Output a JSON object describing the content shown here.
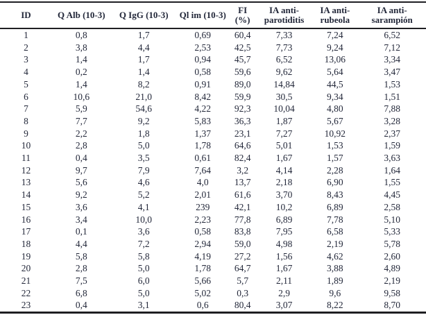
{
  "table": {
    "columns": [
      "ID",
      "Q Alb (10-3)",
      "Q IgG (10-3)",
      "Ql im (10-3)",
      "FI\n(%)",
      "IA anti-\nparotiditis",
      "IA anti-\nrubeola",
      "IA anti-\nsarampión"
    ],
    "rows": [
      [
        "1",
        "0,8",
        "1,7",
        "0,69",
        "60,4",
        "7,33",
        "7,24",
        "6,52"
      ],
      [
        "2",
        "3,8",
        "4,4",
        "2,53",
        "42,5",
        "7,73",
        "9,24",
        "7,12"
      ],
      [
        "3",
        "1,4",
        "1,7",
        "0,94",
        "45,7",
        "6,52",
        "13,06",
        "3,34"
      ],
      [
        "4",
        "0,2",
        "1,4",
        "0,58",
        "59,6",
        "9,62",
        "5,64",
        "3,47"
      ],
      [
        "5",
        "1,4",
        "8,2",
        "0,91",
        "89,0",
        "14,84",
        "44,5",
        "1,53"
      ],
      [
        "6",
        "10,6",
        "21,0",
        "8,42",
        "59,9",
        "30,5",
        "9,34",
        "1,51"
      ],
      [
        "7",
        "5,9",
        "54,6",
        "4,22",
        "92,3",
        "10,04",
        "4,80",
        "7,88"
      ],
      [
        "8",
        "7,7",
        "9,2",
        "5,83",
        "36,3",
        "1,87",
        "5,67",
        "3,28"
      ],
      [
        "9",
        "2,2",
        "1,8",
        "1,37",
        "23,1",
        "7,27",
        "10,92",
        "2,37"
      ],
      [
        "10",
        "2,8",
        "5,0",
        "1,78",
        "64,6",
        "5,01",
        "1,53",
        "1,59"
      ],
      [
        "11",
        "0,4",
        "3,5",
        "0,61",
        "82,4",
        "1,67",
        "1,57",
        "3,63"
      ],
      [
        "12",
        "9,7",
        "7,9",
        "7,64",
        "3,2",
        "4,14",
        "2,28",
        "1,64"
      ],
      [
        "13",
        "5,6",
        "4,6",
        "4,0",
        "13,7",
        "2,18",
        "6,90",
        "1,55"
      ],
      [
        "14",
        "9,2",
        "5,2",
        "2,01",
        "61,6",
        "3,70",
        "8,43",
        "4,45"
      ],
      [
        "15",
        "3,6",
        "4,1",
        "239",
        "42,1",
        "10,2",
        "6,89",
        "2,58"
      ],
      [
        "16",
        "3,4",
        "10,0",
        "2,23",
        "77,8",
        "6,89",
        "7,78",
        "5,10"
      ],
      [
        "17",
        "0,1",
        "3,6",
        "0,58",
        "83,8",
        "7,95",
        "6,58",
        "5,33"
      ],
      [
        "18",
        "4,4",
        "7,2",
        "2,94",
        "59,0",
        "4,98",
        "2,19",
        "5,78"
      ],
      [
        "19",
        "5,8",
        "5,8",
        "4,19",
        "27,2",
        "1,56",
        "4,62",
        "2,60"
      ],
      [
        "20",
        "2,8",
        "5,0",
        "1,78",
        "64,7",
        "1,67",
        "3,88",
        "4,89"
      ],
      [
        "21",
        "7,5",
        "6,0",
        "5,66",
        "5,7",
        "2,11",
        "1,89",
        "2,19"
      ],
      [
        "22",
        "6,8",
        "5,0",
        "5,02",
        "0,3",
        "2,9",
        "9,6",
        "9,58"
      ],
      [
        "23",
        "0,4",
        "3,1",
        "0,6",
        "80,4",
        "3,07",
        "8,22",
        "8,70"
      ]
    ],
    "column_widths_pct": [
      12.2,
      13.8,
      15.5,
      12.2,
      6.5,
      13.0,
      10.9,
      15.9
    ],
    "text_color": "#23283a",
    "rule_color": "#1e1e22"
  }
}
